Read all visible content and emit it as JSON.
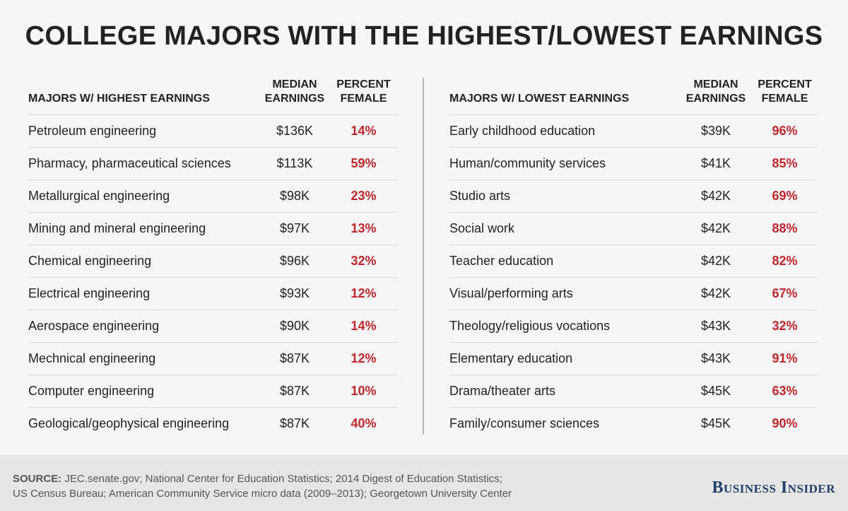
{
  "title": "COLLEGE MAJORS WITH THE HIGHEST/LOWEST EARNINGS",
  "colors": {
    "percent_text": "#c0272d",
    "brand": "#1f3f6b"
  },
  "left": {
    "headers": {
      "major": "MAJORS W/ HIGHEST EARNINGS",
      "earn1": "MEDIAN",
      "earn2": "EARNINGS",
      "pct1": "PERCENT",
      "pct2": "FEMALE"
    }
  },
  "right": {
    "headers": {
      "major": "MAJORS W/ LOWEST EARNINGS",
      "earn1": "MEDIAN",
      "earn2": "EARNINGS",
      "pct1": "PERCENT",
      "pct2": "FEMALE"
    }
  },
  "chart_data": [
    {
      "type": "table",
      "title": "MAJORS W/ HIGHEST EARNINGS",
      "columns": [
        "MAJORS W/ HIGHEST EARNINGS",
        "MEDIAN EARNINGS",
        "PERCENT FEMALE"
      ],
      "rows": [
        {
          "major": "Petroleum engineering",
          "earnings": "$136K",
          "female": "14%"
        },
        {
          "major": "Pharmacy, pharmaceutical sciences",
          "earnings": "$113K",
          "female": "59%"
        },
        {
          "major": "Metallurgical engineering",
          "earnings": "$98K",
          "female": "23%"
        },
        {
          "major": "Mining and mineral engineering",
          "earnings": "$97K",
          "female": "13%"
        },
        {
          "major": "Chemical engineering",
          "earnings": "$96K",
          "female": "32%"
        },
        {
          "major": "Electrical engineering",
          "earnings": "$93K",
          "female": "12%"
        },
        {
          "major": "Aerospace engineering",
          "earnings": "$90K",
          "female": "14%"
        },
        {
          "major": "Mechnical engineering",
          "earnings": "$87K",
          "female": "12%"
        },
        {
          "major": "Computer engineering",
          "earnings": "$87K",
          "female": "10%"
        },
        {
          "major": "Geological/geophysical engineering",
          "earnings": "$87K",
          "female": "40%"
        }
      ]
    },
    {
      "type": "table",
      "title": "MAJORS W/ LOWEST EARNINGS",
      "columns": [
        "MAJORS W/ LOWEST EARNINGS",
        "MEDIAN EARNINGS",
        "PERCENT FEMALE"
      ],
      "rows": [
        {
          "major": "Early childhood education",
          "earnings": "$39K",
          "female": "96%"
        },
        {
          "major": "Human/community services",
          "earnings": "$41K",
          "female": "85%"
        },
        {
          "major": "Studio arts",
          "earnings": "$42K",
          "female": "69%"
        },
        {
          "major": "Social work",
          "earnings": "$42K",
          "female": "88%"
        },
        {
          "major": "Teacher education",
          "earnings": "$42K",
          "female": "82%"
        },
        {
          "major": "Visual/performing arts",
          "earnings": "$42K",
          "female": "67%"
        },
        {
          "major": "Theology/religious vocations",
          "earnings": "$43K",
          "female": "32%"
        },
        {
          "major": "Elementary education",
          "earnings": "$43K",
          "female": "91%"
        },
        {
          "major": "Drama/theater arts",
          "earnings": "$45K",
          "female": "63%"
        },
        {
          "major": "Family/consumer sciences",
          "earnings": "$45K",
          "female": "90%"
        }
      ]
    }
  ],
  "footer": {
    "source_label": "SOURCE:",
    "source_line1": " JEC.senate.gov; National Center for Education Statistics; 2014 Digest of Education Statistics;",
    "source_line2": "US Census Bureau; American Community Service micro data (2009–2013); Georgetown University Center",
    "brand": "Business Insider"
  }
}
